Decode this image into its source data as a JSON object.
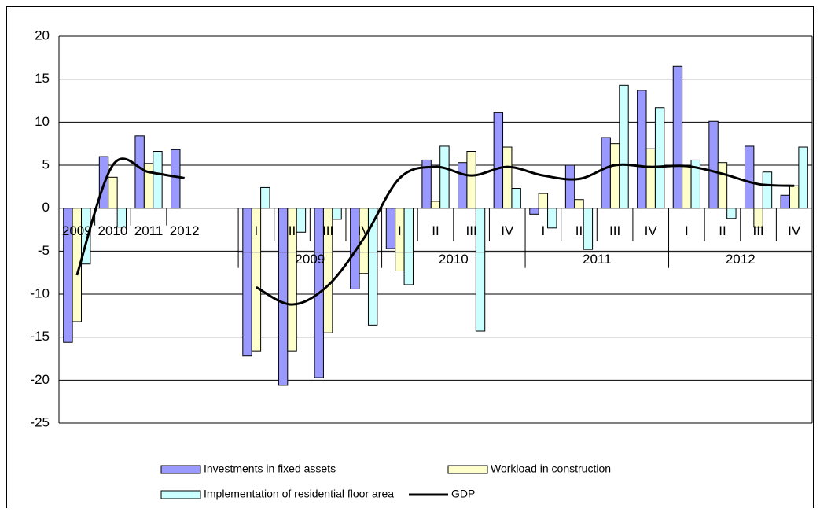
{
  "chart_data": {
    "type": "bar",
    "categories": [
      "2009",
      "2010",
      "2011",
      "2012",
      null,
      "I",
      "II",
      "III",
      "IV",
      "I",
      "II",
      "III",
      "IV",
      "I",
      "II",
      "III",
      "IV",
      "I",
      "II",
      "III",
      "IV"
    ],
    "group_labels": [
      "2009",
      "2010",
      "2011",
      "2012"
    ],
    "series": [
      {
        "name": "Investments in fixed assets",
        "type": "bar",
        "color": "#9999ff",
        "values": [
          -15.6,
          6.0,
          8.4,
          6.8,
          null,
          -17.2,
          -20.6,
          -19.7,
          -9.4,
          -4.7,
          5.6,
          5.3,
          11.1,
          -0.7,
          5.0,
          8.2,
          13.7,
          16.5,
          10.1,
          7.2,
          1.5
        ]
      },
      {
        "name": "Workload in construction",
        "type": "bar",
        "color": "#ffffcc",
        "values": [
          -13.2,
          3.6,
          5.2,
          null,
          null,
          -16.6,
          -16.6,
          -14.5,
          -7.6,
          -7.3,
          0.8,
          6.6,
          7.1,
          1.7,
          1.0,
          7.5,
          6.9,
          5.0,
          5.3,
          -2.2,
          2.6
        ]
      },
      {
        "name": "Implementation of residential floor area",
        "type": "bar",
        "color": "#ccffff",
        "values": [
          -6.5,
          -2.2,
          6.6,
          null,
          null,
          2.4,
          -2.8,
          -1.3,
          -13.6,
          -8.9,
          7.2,
          -14.3,
          2.3,
          -2.3,
          -4.8,
          14.3,
          11.7,
          5.6,
          -1.2,
          4.2,
          7.1
        ]
      },
      {
        "name": "GDP",
        "type": "line",
        "color": "#000000",
        "values": [
          -7.8,
          5.0,
          4.2,
          3.5,
          null,
          -9.2,
          -11.2,
          -9.0,
          -3.5,
          3.5,
          4.8,
          3.8,
          4.8,
          3.8,
          3.4,
          5.0,
          4.8,
          4.9,
          4.0,
          2.8,
          2.6
        ]
      }
    ],
    "ylim": [
      -25,
      20
    ],
    "yticks": [
      -25,
      -20,
      -15,
      -10,
      -5,
      0,
      5,
      10,
      15,
      20
    ],
    "grid": true
  }
}
